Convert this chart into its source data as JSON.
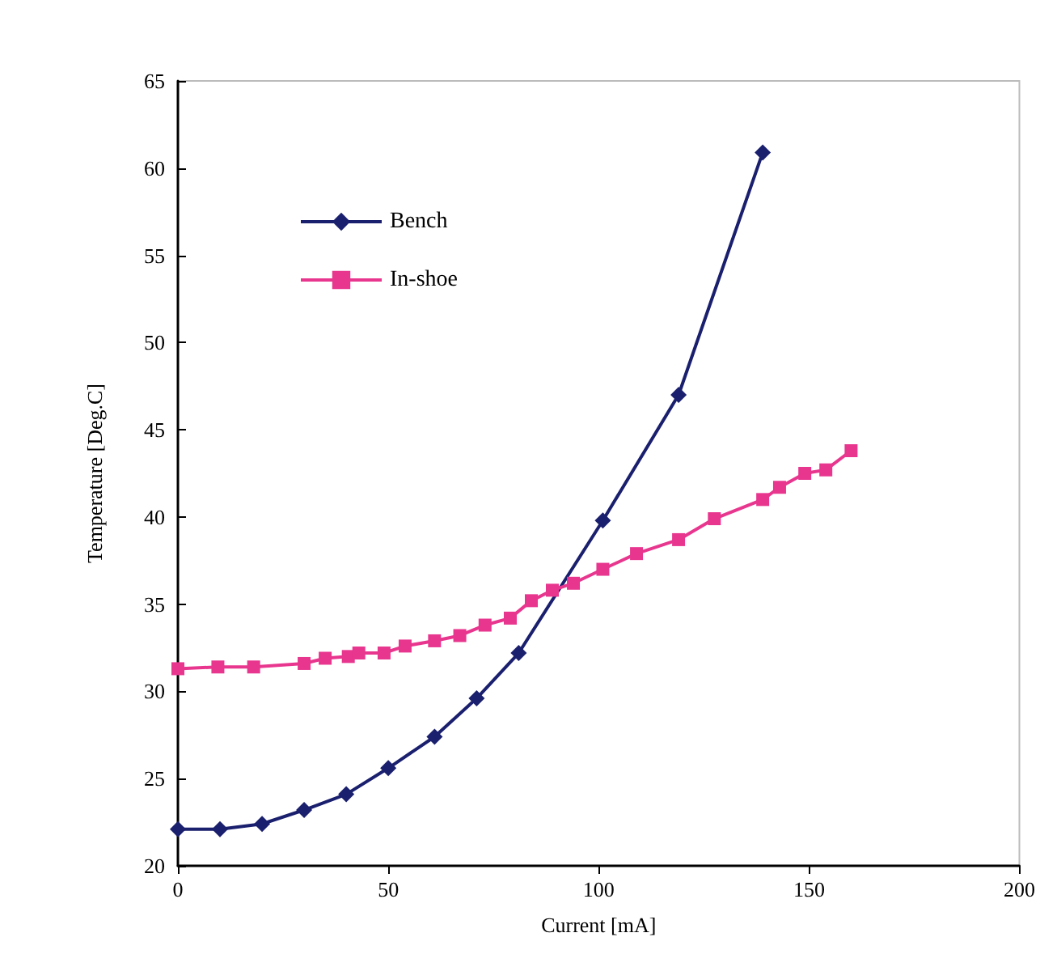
{
  "chart_data": {
    "type": "line",
    "xlabel": "Current [mA]",
    "ylabel": "Temperature [Deg.C]",
    "xlim": [
      0,
      200
    ],
    "xticks": [
      0,
      50,
      100,
      150,
      200
    ],
    "ylim": [
      20,
      65
    ],
    "yticks": [
      20,
      25,
      30,
      35,
      40,
      45,
      50,
      55,
      60,
      65
    ],
    "grid": false,
    "legend": "top left",
    "line_style": "solid",
    "series": [
      {
        "name": "Bench",
        "color": "#1a1f6e",
        "marker": "diamond",
        "x": [
          0,
          10,
          20,
          30,
          40,
          50,
          61,
          71,
          81,
          101,
          119,
          139
        ],
        "values": [
          22.1,
          22.1,
          22.4,
          23.2,
          24.1,
          25.6,
          27.4,
          29.6,
          32.2,
          39.8,
          47.0,
          60.9
        ]
      },
      {
        "name": "In-shoe",
        "color": "#e8368f",
        "marker": "square",
        "x": [
          0,
          9.5,
          18,
          30,
          35,
          40.5,
          43,
          49,
          54,
          61,
          67,
          73,
          79,
          84,
          89,
          94,
          101,
          109,
          119,
          127.5,
          139,
          143,
          149,
          154,
          160
        ],
        "values": [
          31.3,
          31.4,
          31.4,
          31.6,
          31.9,
          32.0,
          32.2,
          32.2,
          32.6,
          32.9,
          33.2,
          33.8,
          34.2,
          35.2,
          35.8,
          36.2,
          37.0,
          37.9,
          38.7,
          39.9,
          41.0,
          41.7,
          42.5,
          42.7,
          43.8
        ]
      }
    ]
  }
}
